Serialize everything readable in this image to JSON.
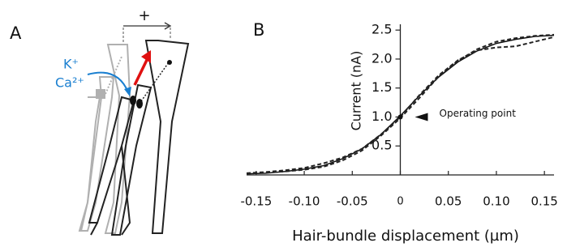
{
  "panel_a": {
    "label": "A",
    "direction_label": "+",
    "ions": [
      "K⁺",
      "Ca²⁺"
    ]
  },
  "chart_data": {
    "type": "line",
    "panel_label": "B",
    "x_label": "Hair-bundle displacement (µm)",
    "y_label": "Current (nA)",
    "x": [
      -0.16,
      -0.14,
      -0.12,
      -0.1,
      -0.08,
      -0.06,
      -0.04,
      -0.02,
      0,
      0.02,
      0.04,
      0.06,
      0.08,
      0.1,
      0.12,
      0.14,
      0.16
    ],
    "series": [
      {
        "color": "#111111",
        "dash": false,
        "values": [
          0.02,
          0.03,
          0.06,
          0.1,
          0.16,
          0.28,
          0.45,
          0.7,
          1.02,
          1.37,
          1.69,
          1.95,
          2.14,
          2.27,
          2.34,
          2.39,
          2.41
        ]
      },
      {
        "color": "#222222",
        "dash": true,
        "values": [
          0.03,
          0.05,
          0.08,
          0.12,
          0.2,
          0.3,
          0.45,
          0.7,
          1.0,
          1.38,
          1.72,
          1.98,
          2.15,
          2.2,
          2.22,
          2.3,
          2.38
        ]
      },
      {
        "color": "#222222",
        "dash": true,
        "values": [
          0.02,
          0.04,
          0.06,
          0.09,
          0.14,
          0.25,
          0.42,
          0.68,
          0.98,
          1.33,
          1.7,
          1.97,
          2.17,
          2.3,
          2.36,
          2.4,
          2.42
        ]
      }
    ],
    "xlim": [
      -0.16,
      0.16
    ],
    "ylim": [
      0,
      2.6
    ],
    "xticks": [
      -0.15,
      {
        "value": -0.1,
        "label": "-0.10"
      },
      -0.05,
      0,
      0.05,
      {
        "value": 0.1,
        "label": "0.10"
      },
      0.15
    ],
    "yticks": [
      0.5,
      {
        "value": 1,
        "label": "1.0"
      },
      1.5,
      {
        "value": 2,
        "label": "2.0"
      },
      2.5
    ],
    "annotations": [
      {
        "text": "Operating point",
        "x": 0,
        "y": 1
      }
    ]
  }
}
